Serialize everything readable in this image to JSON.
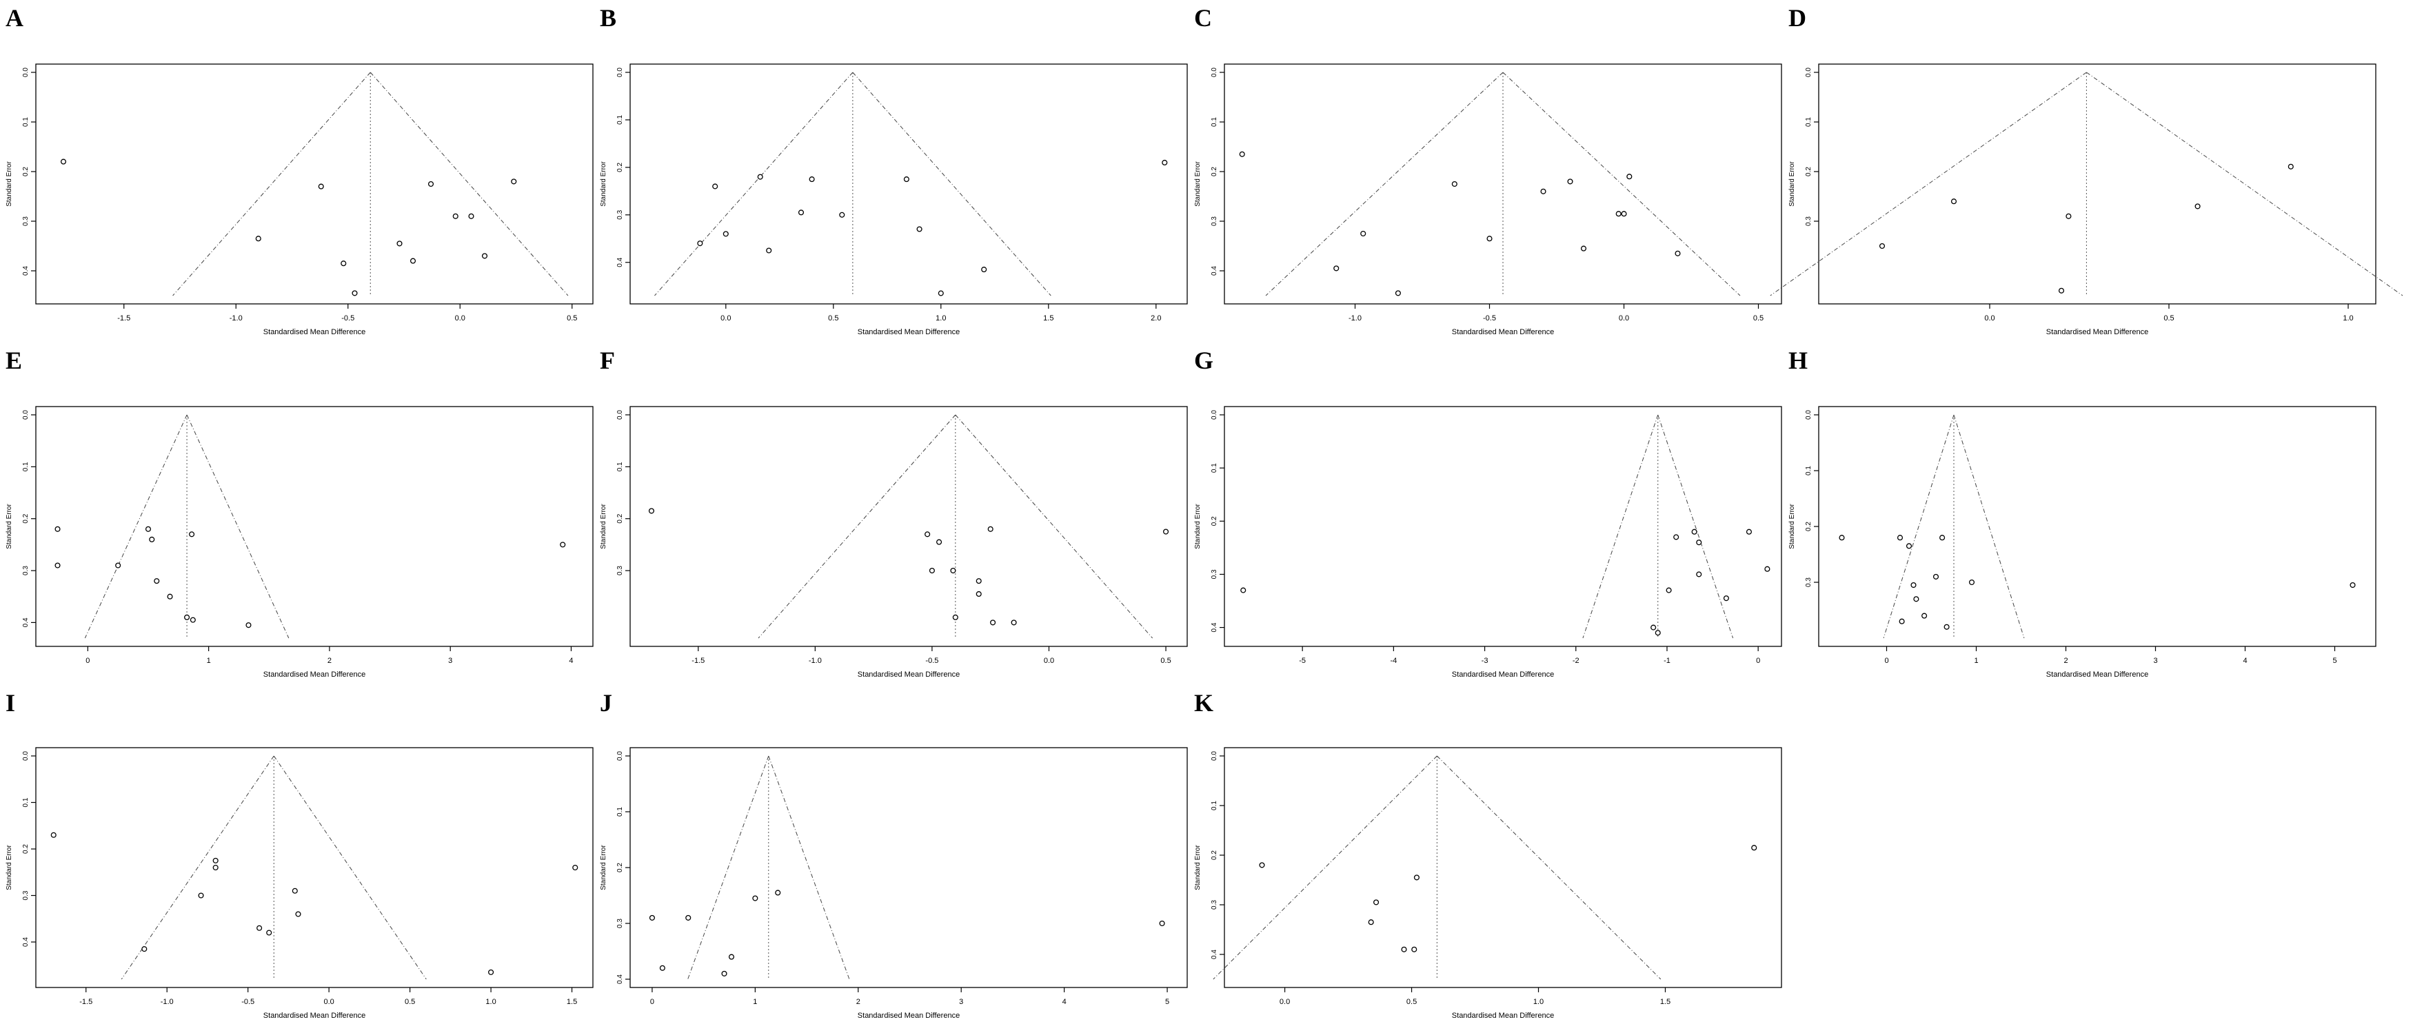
{
  "chart_data": [
    {
      "panel": "A",
      "type": "scatter",
      "xlabel": "Standardised Mean Difference",
      "ylabel": "Standard Error",
      "xlim": [
        -1.85,
        0.55
      ],
      "ylim": [
        0.45,
        0.0
      ],
      "xticks": [
        -1.5,
        -1.0,
        -0.5,
        0.0,
        0.5
      ],
      "yticks": [
        0.0,
        0.1,
        0.2,
        0.3,
        0.4
      ],
      "summary": -0.4,
      "points": [
        [
          -1.77,
          0.18
        ],
        [
          -0.62,
          0.23
        ],
        [
          -0.9,
          0.335
        ],
        [
          -0.52,
          0.385
        ],
        [
          -0.47,
          0.445
        ],
        [
          -0.27,
          0.345
        ],
        [
          -0.21,
          0.38
        ],
        [
          -0.13,
          0.225
        ],
        [
          -0.02,
          0.29
        ],
        [
          0.05,
          0.29
        ],
        [
          0.11,
          0.37
        ],
        [
          0.24,
          0.22
        ]
      ]
    },
    {
      "panel": "B",
      "type": "scatter",
      "xlabel": "Standardised Mean Difference",
      "ylabel": "Standard Error",
      "xlim": [
        -0.4,
        2.1
      ],
      "ylim": [
        0.47,
        0.0
      ],
      "xticks": [
        0.0,
        0.5,
        1.0,
        1.5,
        2.0
      ],
      "yticks": [
        0.0,
        0.1,
        0.2,
        0.3,
        0.4
      ],
      "summary": 0.59,
      "points": [
        [
          -0.05,
          0.24
        ],
        [
          0.0,
          0.34
        ],
        [
          -0.12,
          0.36
        ],
        [
          0.16,
          0.22
        ],
        [
          0.2,
          0.375
        ],
        [
          0.35,
          0.295
        ],
        [
          0.4,
          0.225
        ],
        [
          0.54,
          0.3
        ],
        [
          0.84,
          0.225
        ],
        [
          0.9,
          0.33
        ],
        [
          1.0,
          0.465
        ],
        [
          1.2,
          0.415
        ],
        [
          2.04,
          0.19
        ]
      ]
    },
    {
      "panel": "C",
      "type": "scatter",
      "xlabel": "Standardised Mean Difference",
      "ylabel": "Standard Error",
      "xlim": [
        -1.45,
        0.55
      ],
      "ylim": [
        0.45,
        0.0
      ],
      "xticks": [
        -1.0,
        -0.5,
        0.0,
        0.5
      ],
      "yticks": [
        0.0,
        0.1,
        0.2,
        0.3,
        0.4
      ],
      "summary": -0.45,
      "points": [
        [
          -1.42,
          0.165
        ],
        [
          -1.07,
          0.395
        ],
        [
          -0.97,
          0.325
        ],
        [
          -0.84,
          0.445
        ],
        [
          -0.63,
          0.225
        ],
        [
          -0.5,
          0.335
        ],
        [
          -0.3,
          0.24
        ],
        [
          -0.2,
          0.22
        ],
        [
          -0.15,
          0.355
        ],
        [
          -0.02,
          0.285
        ],
        [
          0.0,
          0.285
        ],
        [
          0.02,
          0.21
        ],
        [
          0.2,
          0.365
        ]
      ]
    },
    {
      "panel": "D",
      "type": "scatter",
      "xlabel": "Standardised Mean Difference",
      "ylabel": "Standard Error",
      "xlim": [
        -0.45,
        1.05
      ],
      "ylim": [
        0.45,
        0.0
      ],
      "xticks": [
        0.0,
        0.5,
        1.0
      ],
      "yticks": [
        0.0,
        0.1,
        0.2,
        0.3
      ],
      "summary": 0.27,
      "points": [
        [
          -0.3,
          0.35
        ],
        [
          -0.1,
          0.26
        ],
        [
          0.2,
          0.44
        ],
        [
          0.22,
          0.29
        ],
        [
          0.58,
          0.27
        ],
        [
          0.84,
          0.19
        ]
      ]
    },
    {
      "panel": "E",
      "type": "scatter",
      "xlabel": "Standardised Mean Difference",
      "ylabel": "Standard Error",
      "xlim": [
        -0.35,
        4.1
      ],
      "ylim": [
        0.43,
        0.0
      ],
      "xticks": [
        0,
        1,
        2,
        3,
        4
      ],
      "yticks": [
        0.0,
        0.1,
        0.2,
        0.3,
        0.4
      ],
      "summary": 0.82,
      "points": [
        [
          -0.25,
          0.22
        ],
        [
          -0.25,
          0.29
        ],
        [
          0.25,
          0.29
        ],
        [
          0.5,
          0.22
        ],
        [
          0.53,
          0.24
        ],
        [
          0.57,
          0.32
        ],
        [
          0.68,
          0.35
        ],
        [
          0.82,
          0.39
        ],
        [
          0.86,
          0.23
        ],
        [
          0.87,
          0.395
        ],
        [
          1.33,
          0.405
        ],
        [
          3.93,
          0.25
        ]
      ]
    },
    {
      "panel": "F",
      "type": "scatter",
      "xlabel": "Standardised Mean Difference",
      "ylabel": "Standard Error",
      "xlim": [
        -1.75,
        0.55
      ],
      "ylim": [
        0.43,
        0.0
      ],
      "xticks": [
        -1.5,
        -1.0,
        -0.5,
        0.0,
        0.5
      ],
      "yticks": [
        0.0,
        0.1,
        0.2,
        0.3
      ],
      "summary": -0.4,
      "points": [
        [
          -1.7,
          0.185
        ],
        [
          -0.52,
          0.23
        ],
        [
          -0.5,
          0.3
        ],
        [
          -0.47,
          0.245
        ],
        [
          -0.41,
          0.3
        ],
        [
          -0.4,
          0.39
        ],
        [
          -0.3,
          0.32
        ],
        [
          -0.3,
          0.345
        ],
        [
          -0.25,
          0.22
        ],
        [
          -0.24,
          0.4
        ],
        [
          -0.15,
          0.4
        ],
        [
          0.5,
          0.225
        ]
      ]
    },
    {
      "panel": "G",
      "type": "scatter",
      "xlabel": "Standardised Mean Difference",
      "ylabel": "Standard Error",
      "xlim": [
        -5.75,
        0.15
      ],
      "ylim": [
        0.42,
        0.0
      ],
      "xticks": [
        -5,
        -4,
        -3,
        -2,
        -1,
        0
      ],
      "yticks": [
        0.0,
        0.1,
        0.2,
        0.3,
        0.4
      ],
      "summary": -1.1,
      "points": [
        [
          -5.65,
          0.33
        ],
        [
          -1.15,
          0.4
        ],
        [
          -1.1,
          0.41
        ],
        [
          -0.98,
          0.33
        ],
        [
          -0.9,
          0.23
        ],
        [
          -0.7,
          0.22
        ],
        [
          -0.65,
          0.24
        ],
        [
          -0.65,
          0.3
        ],
        [
          -0.35,
          0.345
        ],
        [
          -0.1,
          0.22
        ],
        [
          0.1,
          0.29
        ]
      ]
    },
    {
      "panel": "H",
      "type": "scatter",
      "xlabel": "Standardised Mean Difference",
      "ylabel": "Standard Error",
      "xlim": [
        -0.65,
        5.35
      ],
      "ylim": [
        0.4,
        0.0
      ],
      "xticks": [
        0,
        1,
        2,
        3,
        4,
        5
      ],
      "yticks": [
        0.0,
        0.1,
        0.2,
        0.3
      ],
      "summary": 0.75,
      "points": [
        [
          -0.5,
          0.22
        ],
        [
          0.15,
          0.22
        ],
        [
          0.17,
          0.37
        ],
        [
          0.25,
          0.235
        ],
        [
          0.3,
          0.305
        ],
        [
          0.33,
          0.33
        ],
        [
          0.42,
          0.36
        ],
        [
          0.55,
          0.29
        ],
        [
          0.62,
          0.22
        ],
        [
          0.67,
          0.38
        ],
        [
          0.95,
          0.3
        ],
        [
          5.2,
          0.305
        ]
      ]
    },
    {
      "panel": "I",
      "type": "scatter",
      "xlabel": "Standardised Mean Difference",
      "ylabel": "Standard Error",
      "xlim": [
        -1.75,
        1.57
      ],
      "ylim": [
        0.48,
        0.0
      ],
      "xticks": [
        -1.5,
        -1.0,
        -0.5,
        0.0,
        0.5,
        1.0,
        1.5
      ],
      "yticks": [
        0.0,
        0.1,
        0.2,
        0.3,
        0.4
      ],
      "summary": -0.34,
      "points": [
        [
          -1.7,
          0.17
        ],
        [
          -1.14,
          0.415
        ],
        [
          -0.79,
          0.3
        ],
        [
          -0.7,
          0.225
        ],
        [
          -0.7,
          0.24
        ],
        [
          -0.43,
          0.37
        ],
        [
          -0.37,
          0.38
        ],
        [
          -0.21,
          0.29
        ],
        [
          -0.19,
          0.34
        ],
        [
          1.0,
          0.465
        ],
        [
          1.52,
          0.24
        ]
      ]
    },
    {
      "panel": "J",
      "type": "scatter",
      "xlabel": "Standardised Mean Difference",
      "ylabel": "Standard Error",
      "xlim": [
        -0.12,
        5.1
      ],
      "ylim": [
        0.4,
        0.0
      ],
      "xticks": [
        0,
        1,
        2,
        3,
        4,
        5
      ],
      "yticks": [
        0.0,
        0.1,
        0.2,
        0.3,
        0.4
      ],
      "summary": 1.13,
      "points": [
        [
          0.0,
          0.29
        ],
        [
          0.1,
          0.38
        ],
        [
          0.35,
          0.29
        ],
        [
          0.7,
          0.39
        ],
        [
          0.77,
          0.36
        ],
        [
          1.0,
          0.255
        ],
        [
          1.22,
          0.245
        ],
        [
          4.95,
          0.3
        ]
      ]
    },
    {
      "panel": "K",
      "type": "scatter",
      "xlabel": "Standardised Mean Difference",
      "ylabel": "Standard Error",
      "xlim": [
        -0.2,
        1.92
      ],
      "ylim": [
        0.45,
        0.0
      ],
      "xticks": [
        0.0,
        0.5,
        1.0,
        1.5
      ],
      "yticks": [
        0.0,
        0.1,
        0.2,
        0.3,
        0.4
      ],
      "summary": 0.6,
      "points": [
        [
          -0.09,
          0.22
        ],
        [
          0.34,
          0.335
        ],
        [
          0.36,
          0.295
        ],
        [
          0.47,
          0.39
        ],
        [
          0.51,
          0.39
        ],
        [
          0.52,
          0.245
        ],
        [
          1.85,
          0.185
        ]
      ]
    }
  ]
}
